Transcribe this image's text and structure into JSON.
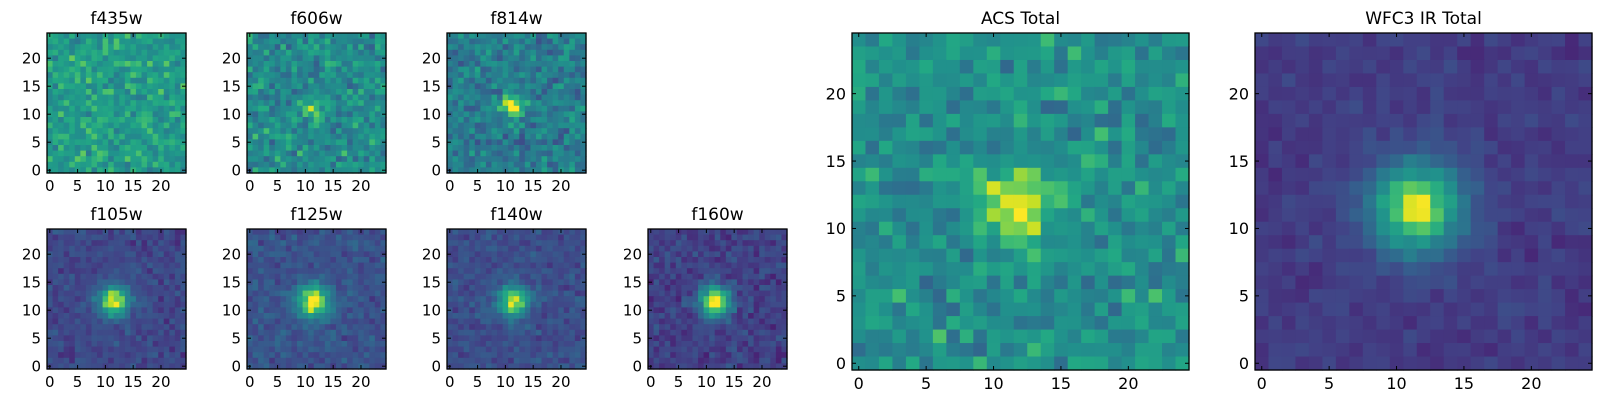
{
  "chart_data": [
    {
      "type": "heatmap",
      "title": "f435w",
      "xlim": [
        0,
        24
      ],
      "ylim": [
        0,
        24
      ],
      "xticks": [
        0,
        5,
        10,
        15,
        20
      ],
      "yticks": [
        0,
        5,
        10,
        15,
        20
      ],
      "colormap": "viridis",
      "source": {
        "x": 12,
        "y": 12,
        "width": 1.6,
        "peak": 0.0
      },
      "background_level": 0.68,
      "noise_level": 0.2
    },
    {
      "type": "heatmap",
      "title": "f606w",
      "xlim": [
        0,
        24
      ],
      "ylim": [
        0,
        24
      ],
      "xticks": [
        0,
        5,
        10,
        15,
        20
      ],
      "yticks": [
        0,
        5,
        10,
        15,
        20
      ],
      "colormap": "viridis",
      "source": {
        "x": 11.5,
        "y": 11.5,
        "width": 1.5,
        "peak": 0.2
      },
      "background_level": 0.6,
      "noise_level": 0.24
    },
    {
      "type": "heatmap",
      "title": "f814w",
      "xlim": [
        0,
        24
      ],
      "ylim": [
        0,
        24
      ],
      "xticks": [
        0,
        5,
        10,
        15,
        20
      ],
      "yticks": [
        0,
        5,
        10,
        15,
        20
      ],
      "colormap": "viridis",
      "source": {
        "x": 11.5,
        "y": 11.5,
        "width": 1.5,
        "peak": 0.45
      },
      "background_level": 0.52,
      "noise_level": 0.24
    },
    {
      "type": "heatmap",
      "title": "f105w",
      "xlim": [
        0,
        24
      ],
      "ylim": [
        0,
        24
      ],
      "xticks": [
        0,
        5,
        10,
        15,
        20
      ],
      "yticks": [
        0,
        5,
        10,
        15,
        20
      ],
      "colormap": "viridis",
      "source": {
        "x": 11.5,
        "y": 11.5,
        "width": 2.0,
        "peak": 0.75
      },
      "background_level": 0.27,
      "noise_level": 0.13
    },
    {
      "type": "heatmap",
      "title": "f125w",
      "xlim": [
        0,
        24
      ],
      "ylim": [
        0,
        24
      ],
      "xticks": [
        0,
        5,
        10,
        15,
        20
      ],
      "yticks": [
        0,
        5,
        10,
        15,
        20
      ],
      "colormap": "viridis",
      "source": {
        "x": 11.5,
        "y": 11.5,
        "width": 2.1,
        "peak": 0.72
      },
      "background_level": 0.32,
      "noise_level": 0.13
    },
    {
      "type": "heatmap",
      "title": "f140w",
      "xlim": [
        0,
        24
      ],
      "ylim": [
        0,
        24
      ],
      "xticks": [
        0,
        5,
        10,
        15,
        20
      ],
      "yticks": [
        0,
        5,
        10,
        15,
        20
      ],
      "colormap": "viridis",
      "source": {
        "x": 11.5,
        "y": 11.5,
        "width": 2.0,
        "peak": 0.68
      },
      "background_level": 0.3,
      "noise_level": 0.12
    },
    {
      "type": "heatmap",
      "title": "f160w",
      "xlim": [
        0,
        24
      ],
      "ylim": [
        0,
        24
      ],
      "xticks": [
        0,
        5,
        10,
        15,
        20
      ],
      "yticks": [
        0,
        5,
        10,
        15,
        20
      ],
      "colormap": "viridis",
      "source": {
        "x": 11.5,
        "y": 11.5,
        "width": 2.0,
        "peak": 0.82
      },
      "background_level": 0.24,
      "noise_level": 0.14
    },
    {
      "type": "heatmap",
      "title": "ACS Total",
      "xlim": [
        0,
        24
      ],
      "ylim": [
        0,
        24
      ],
      "xticks": [
        0,
        5,
        10,
        15,
        20
      ],
      "yticks": [
        0,
        5,
        10,
        15,
        20
      ],
      "colormap": "viridis",
      "source": {
        "x": 11.5,
        "y": 11.5,
        "width": 1.8,
        "peak": 0.35
      },
      "background_level": 0.62,
      "noise_level": 0.22
    },
    {
      "type": "heatmap",
      "title": "WFC3 IR Total",
      "xlim": [
        0,
        24
      ],
      "ylim": [
        0,
        24
      ],
      "xticks": [
        0,
        5,
        10,
        15,
        20
      ],
      "yticks": [
        0,
        5,
        10,
        15,
        20
      ],
      "colormap": "viridis",
      "source": {
        "x": 11.5,
        "y": 11.5,
        "width": 2.4,
        "peak": 0.78
      },
      "background_level": 0.22,
      "noise_level": 0.08
    }
  ]
}
